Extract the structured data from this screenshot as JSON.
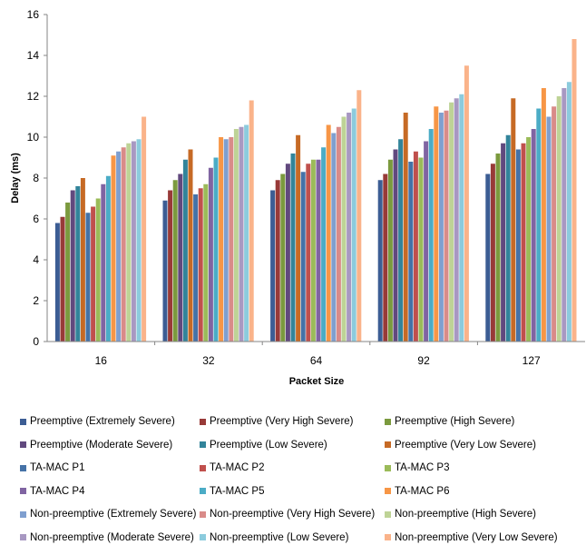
{
  "chart_data": {
    "type": "bar",
    "xlabel": "Packet Size",
    "ylabel": "Delay (ms)",
    "ylim": [
      0,
      16
    ],
    "yticks": [
      "0",
      "2",
      "4",
      "6",
      "8",
      "10",
      "12",
      "14",
      "16"
    ],
    "categories": [
      "16",
      "32",
      "64",
      "92",
      "127"
    ],
    "grid": false,
    "legend_position": "bottom",
    "series": [
      {
        "name": "Preemptive (Extremely Severe)",
        "color": "#3c5d94",
        "values": [
          5.8,
          6.9,
          7.4,
          7.9,
          8.2
        ]
      },
      {
        "name": "Preemptive (Very High Severe)",
        "color": "#983a38",
        "values": [
          6.1,
          7.4,
          7.9,
          8.2,
          8.7
        ]
      },
      {
        "name": "Preemptive (High Severe)",
        "color": "#7b9a3e",
        "values": [
          6.8,
          7.9,
          8.2,
          8.9,
          9.2
        ]
      },
      {
        "name": "Preemptive (Moderate Severe)",
        "color": "#61497e",
        "values": [
          7.4,
          8.2,
          8.7,
          9.4,
          9.7
        ]
      },
      {
        "name": "Preemptive (Low Severe)",
        "color": "#32849a",
        "values": [
          7.6,
          8.9,
          9.2,
          9.9,
          10.1
        ]
      },
      {
        "name": "Preemptive (Very Low Severe)",
        "color": "#c66a25",
        "values": [
          8.0,
          9.4,
          10.1,
          11.2,
          11.9
        ]
      },
      {
        "name": "TA-MAC P1",
        "color": "#4572a7",
        "values": [
          6.3,
          7.2,
          8.3,
          8.8,
          9.4
        ]
      },
      {
        "name": "TA-MAC P2",
        "color": "#c0504d",
        "values": [
          6.6,
          7.5,
          8.7,
          9.3,
          9.7
        ]
      },
      {
        "name": "TA-MAC P3",
        "color": "#9bbb59",
        "values": [
          7.0,
          7.7,
          8.9,
          9.0,
          10.0
        ]
      },
      {
        "name": "TA-MAC P4",
        "color": "#8064a2",
        "values": [
          7.7,
          8.5,
          8.9,
          9.8,
          10.4
        ]
      },
      {
        "name": "TA-MAC P5",
        "color": "#4bacc6",
        "values": [
          8.1,
          9.0,
          9.5,
          10.4,
          11.4
        ]
      },
      {
        "name": "TA-MAC P6",
        "color": "#f79646",
        "values": [
          9.1,
          10.0,
          10.6,
          11.5,
          12.4
        ]
      },
      {
        "name": "Non-preemptive (Extremely Severe)",
        "color": "#7f9fcf",
        "values": [
          9.3,
          9.9,
          10.2,
          11.2,
          11.0
        ]
      },
      {
        "name": "Non-preemptive (Very High Severe)",
        "color": "#d98b89",
        "values": [
          9.5,
          10.0,
          10.5,
          11.3,
          11.5
        ]
      },
      {
        "name": "Non-preemptive (High Severe)",
        "color": "#bed396",
        "values": [
          9.7,
          10.4,
          11.0,
          11.7,
          12.0
        ]
      },
      {
        "name": "Non-preemptive (Moderate Severe)",
        "color": "#a898c2",
        "values": [
          9.8,
          10.5,
          11.2,
          11.9,
          12.4
        ]
      },
      {
        "name": "Non-preemptive (Low Severe)",
        "color": "#8ccbdd",
        "values": [
          9.9,
          10.6,
          11.4,
          12.1,
          12.7
        ]
      },
      {
        "name": "Non-preemptive (Very Low Severe)",
        "color": "#fab38a",
        "values": [
          11.0,
          11.8,
          12.3,
          13.5,
          14.8
        ]
      }
    ]
  }
}
